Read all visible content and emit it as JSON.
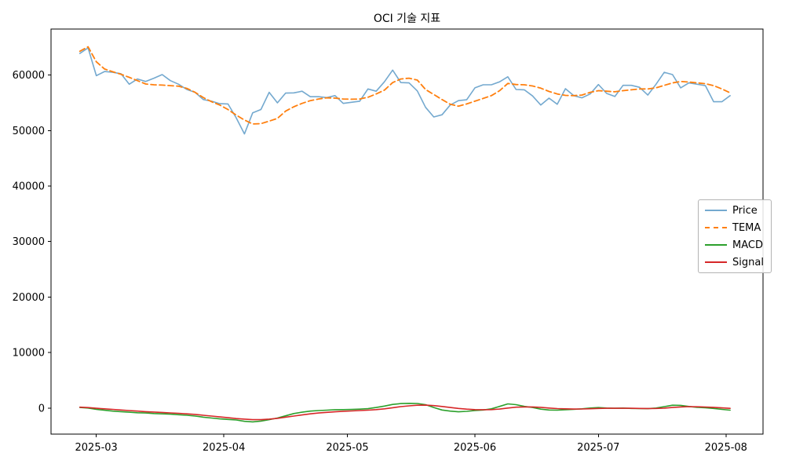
{
  "title": "OCI 기술 지표",
  "axes": {
    "x_tick_labels": [
      "2025-03",
      "2025-04",
      "2025-05",
      "2025-06",
      "2025-07",
      "2025-08"
    ],
    "y_tick_labels": [
      "0",
      "10000",
      "20000",
      "30000",
      "40000",
      "50000",
      "60000"
    ]
  },
  "legend": {
    "items": [
      {
        "label": "Price",
        "color": "#74a9cf",
        "dash": "solid"
      },
      {
        "label": "TEMA",
        "color": "#ff7f0e",
        "dash": "dashed"
      },
      {
        "label": "MACD",
        "color": "#2ca02c",
        "dash": "solid"
      },
      {
        "label": "Signal",
        "color": "#d62728",
        "dash": "solid"
      }
    ]
  },
  "chart_data": {
    "type": "line",
    "title": "OCI 기술 지표",
    "xlabel": "",
    "ylabel": "",
    "grid": false,
    "legend_position": "center-right",
    "xlim": [
      "2025-02-18",
      "2025-08-10"
    ],
    "ylim": [
      -4700,
      68300
    ],
    "y_ticks": [
      0,
      10000,
      20000,
      30000,
      40000,
      50000,
      60000
    ],
    "x_ticks": [
      "2025-03-01",
      "2025-04-01",
      "2025-05-01",
      "2025-06-01",
      "2025-07-01",
      "2025-08-01"
    ],
    "x": [
      "2025-02-25",
      "2025-02-27",
      "2025-03-01",
      "2025-03-03",
      "2025-03-05",
      "2025-03-07",
      "2025-03-09",
      "2025-03-11",
      "2025-03-13",
      "2025-03-15",
      "2025-03-17",
      "2025-03-19",
      "2025-03-21",
      "2025-03-23",
      "2025-03-25",
      "2025-03-27",
      "2025-03-29",
      "2025-03-31",
      "2025-04-02",
      "2025-04-04",
      "2025-04-06",
      "2025-04-08",
      "2025-04-10",
      "2025-04-12",
      "2025-04-14",
      "2025-04-16",
      "2025-04-18",
      "2025-04-20",
      "2025-04-22",
      "2025-04-24",
      "2025-04-26",
      "2025-04-28",
      "2025-04-30",
      "2025-05-02",
      "2025-05-04",
      "2025-05-06",
      "2025-05-08",
      "2025-05-10",
      "2025-05-12",
      "2025-05-14",
      "2025-05-16",
      "2025-05-18",
      "2025-05-20",
      "2025-05-22",
      "2025-05-24",
      "2025-05-26",
      "2025-05-28",
      "2025-05-30",
      "2025-06-01",
      "2025-06-03",
      "2025-06-05",
      "2025-06-07",
      "2025-06-09",
      "2025-06-11",
      "2025-06-13",
      "2025-06-15",
      "2025-06-17",
      "2025-06-19",
      "2025-06-21",
      "2025-06-23",
      "2025-06-25",
      "2025-06-27",
      "2025-06-29",
      "2025-07-01",
      "2025-07-03",
      "2025-07-05",
      "2025-07-07",
      "2025-07-09",
      "2025-07-11",
      "2025-07-13",
      "2025-07-15",
      "2025-07-17",
      "2025-07-19",
      "2025-07-21",
      "2025-07-23",
      "2025-07-25",
      "2025-07-27",
      "2025-07-29",
      "2025-07-31",
      "2025-08-02"
    ],
    "series": [
      {
        "name": "Price",
        "color": "#74a9cf",
        "style": "solid",
        "width": 1.6,
        "values": [
          63900,
          64900,
          59900,
          60650,
          60500,
          60250,
          58350,
          59300,
          58850,
          59450,
          60100,
          59000,
          58350,
          57400,
          56900,
          55600,
          55300,
          54850,
          54800,
          52300,
          49400,
          53200,
          53800,
          56900,
          55000,
          56750,
          56800,
          57100,
          56100,
          56100,
          55950,
          56300,
          54900,
          55100,
          55300,
          57500,
          57100,
          58800,
          60900,
          58650,
          58600,
          57150,
          54200,
          52450,
          52850,
          54600,
          55400,
          55550,
          57700,
          58250,
          58250,
          58800,
          59700,
          57400,
          57350,
          56250,
          54600,
          55850,
          54750,
          57550,
          56300,
          55900,
          56600,
          58300,
          56700,
          56150,
          58150,
          58150,
          57800,
          56400,
          58350,
          60500,
          60100,
          57700,
          58600,
          58350,
          58100,
          55200,
          55200,
          56300
        ]
      },
      {
        "name": "TEMA",
        "color": "#ff7f0e",
        "style": "dashed",
        "width": 1.8,
        "values": [
          64300,
          65100,
          62400,
          61100,
          60600,
          60150,
          59600,
          59000,
          58400,
          58250,
          58200,
          58100,
          58000,
          57600,
          56900,
          55950,
          55200,
          54600,
          53800,
          52800,
          51900,
          51200,
          51250,
          51700,
          52200,
          53500,
          54300,
          54900,
          55400,
          55700,
          55900,
          55850,
          55700,
          55650,
          55700,
          56000,
          56600,
          57300,
          58650,
          59300,
          59450,
          59100,
          57400,
          56500,
          55600,
          54750,
          54400,
          54800,
          55300,
          55800,
          56300,
          57200,
          58500,
          58300,
          58250,
          58050,
          57650,
          57050,
          56600,
          56350,
          56300,
          56400,
          56900,
          57200,
          57100,
          57000,
          57200,
          57350,
          57500,
          57500,
          57700,
          58150,
          58600,
          58850,
          58750,
          58600,
          58450,
          58100,
          57500,
          56800
        ]
      },
      {
        "name": "MACD",
        "color": "#2ca02c",
        "style": "solid",
        "width": 1.6,
        "values": [
          100,
          0,
          -250,
          -400,
          -550,
          -650,
          -750,
          -850,
          -900,
          -1000,
          -1050,
          -1100,
          -1200,
          -1300,
          -1450,
          -1650,
          -1800,
          -1950,
          -2050,
          -2150,
          -2400,
          -2500,
          -2350,
          -2100,
          -1800,
          -1400,
          -1000,
          -750,
          -550,
          -450,
          -380,
          -300,
          -280,
          -260,
          -200,
          -120,
          100,
          350,
          650,
          800,
          850,
          820,
          600,
          100,
          -350,
          -550,
          -680,
          -600,
          -450,
          -350,
          -150,
          300,
          750,
          600,
          300,
          100,
          -200,
          -350,
          -380,
          -300,
          -250,
          -150,
          0,
          80,
          0,
          -50,
          0,
          -80,
          -100,
          -120,
          0,
          250,
          500,
          480,
          280,
          120,
          60,
          -80,
          -250,
          -380
        ]
      },
      {
        "name": "Signal",
        "color": "#d62728",
        "style": "solid",
        "width": 1.6,
        "values": [
          150,
          80,
          -50,
          -150,
          -250,
          -350,
          -450,
          -550,
          -650,
          -720,
          -800,
          -880,
          -950,
          -1050,
          -1150,
          -1300,
          -1450,
          -1600,
          -1750,
          -1900,
          -2000,
          -2100,
          -2100,
          -2000,
          -1850,
          -1650,
          -1450,
          -1250,
          -1050,
          -900,
          -780,
          -680,
          -590,
          -520,
          -450,
          -380,
          -280,
          -150,
          50,
          250,
          400,
          500,
          520,
          430,
          280,
          100,
          -80,
          -200,
          -280,
          -300,
          -280,
          -180,
          0,
          150,
          200,
          200,
          120,
          0,
          -100,
          -150,
          -180,
          -170,
          -130,
          -80,
          -50,
          -40,
          -40,
          -50,
          -70,
          -90,
          -80,
          -20,
          90,
          200,
          250,
          230,
          180,
          120,
          30,
          -60
        ]
      }
    ]
  }
}
